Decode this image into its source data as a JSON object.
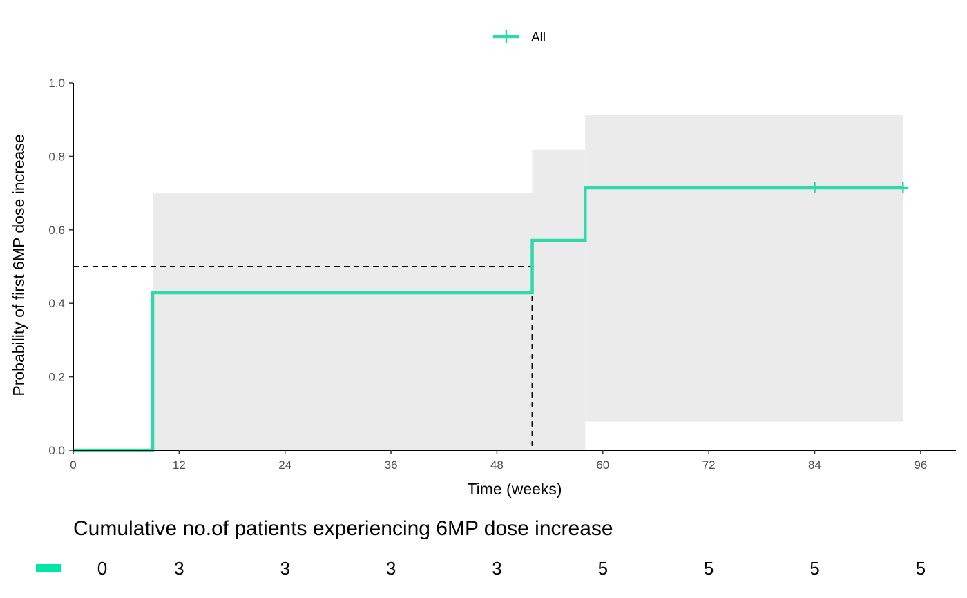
{
  "chart_data": {
    "type": "line",
    "subtype": "step",
    "xlabel": "Time (weeks)",
    "ylabel": "Probability of first 6MP dose increase",
    "xlim": [
      0,
      100
    ],
    "ylim": [
      0,
      1
    ],
    "x_ticks": [
      0,
      12,
      24,
      36,
      48,
      60,
      72,
      84,
      96
    ],
    "y_ticks": [
      0.0,
      0.2,
      0.4,
      0.6,
      0.8,
      1.0
    ],
    "y_tick_labels": [
      "0.0",
      "0.2",
      "0.4",
      "0.6",
      "0.8",
      "1.0"
    ],
    "grid": false,
    "legend": {
      "position": "top",
      "entries": [
        {
          "name": "All",
          "color": "#2ed9ac"
        }
      ]
    },
    "series": [
      {
        "name": "All",
        "color": "#2ed9ac",
        "steps": [
          {
            "x": 0,
            "y": 0.0
          },
          {
            "x": 9,
            "y": 0.4286
          },
          {
            "x": 52,
            "y": 0.5714
          },
          {
            "x": 58,
            "y": 0.7143
          }
        ],
        "end_x": 94,
        "censor_x": [
          84,
          94
        ],
        "ci": [
          {
            "x0": 9,
            "x1": 52,
            "lower": 0.0,
            "upper": 0.699
          },
          {
            "x0": 52,
            "x1": 58,
            "lower": 0.0,
            "upper": 0.818
          },
          {
            "x0": 58,
            "x1": 94,
            "lower": 0.078,
            "upper": 0.912
          }
        ]
      }
    ],
    "median_line": {
      "x": 52,
      "y": 0.5
    },
    "risk_table": {
      "title": "Cumulative no.of patients experiencing 6MP dose increase",
      "times": [
        0,
        12,
        24,
        36,
        48,
        60,
        72,
        84,
        96
      ],
      "counts": [
        "0",
        "3",
        "3",
        "3",
        "3",
        "5",
        "5",
        "5",
        "5"
      ],
      "color": "#00e6a8"
    }
  }
}
